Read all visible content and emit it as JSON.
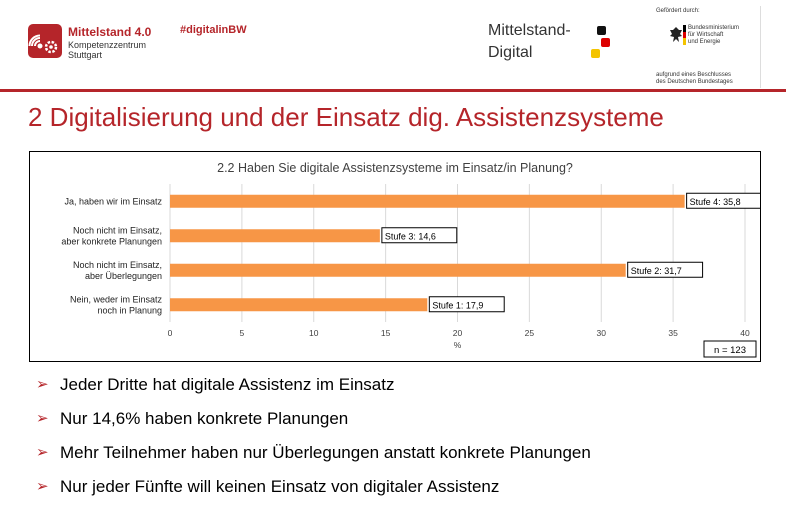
{
  "header": {
    "brand_name": "Mittelstand 4.0",
    "brand_sub1": "Kompetenzzentrum",
    "brand_sub2": "Stuttgart",
    "hashtag": "#digitalinBW",
    "md_line1": "Mittelstand-",
    "md_line2": "Digital",
    "gefoerdert": "Gefördert durch:",
    "ministry_l1": "Bundesministerium",
    "ministry_l2": "für Wirtschaft",
    "ministry_l3": "und Energie",
    "beschluss_l1": "aufgrund eines Beschlusses",
    "beschluss_l2": "des Deutschen Bundestages"
  },
  "slide_title": "2 Digitalisierung und der Einsatz dig. Assistenzsysteme",
  "chart_data": {
    "type": "bar",
    "orientation": "horizontal",
    "title": "2.2 Haben Sie digitale Assistenzsysteme im Einsatz/in Planung?",
    "xlabel": "%",
    "ylabel": "",
    "xlim": [
      0,
      40
    ],
    "xticks": [
      0,
      5,
      10,
      15,
      20,
      25,
      30,
      35,
      40
    ],
    "grid": true,
    "bar_color": "#f79646",
    "categories": [
      [
        "Ja, haben wir im Einsatz"
      ],
      [
        "Noch nicht im Einsatz,",
        "aber konkrete Planungen"
      ],
      [
        "Noch nicht im Einsatz,",
        "aber Überlegungen"
      ],
      [
        "Nein, weder im Einsatz",
        "noch in Planung"
      ]
    ],
    "values": [
      35.8,
      14.6,
      31.7,
      17.9
    ],
    "data_labels": [
      "Stufe 4: 35,8",
      "Stufe 3: 14,6",
      "Stufe 2: 31,7",
      "Stufe 1: 17,9"
    ],
    "note": "n = 123"
  },
  "bullets": [
    "Jeder Dritte hat digitale Assistenz im Einsatz",
    "Nur 14,6% haben konkrete Planungen",
    "Mehr Teilnehmer haben nur Überlegungen anstatt konkrete Planungen",
    "Nur jeder Fünfte will keinen Einsatz von digitaler Assistenz"
  ],
  "colors": {
    "accent": "#b5252a",
    "bar": "#f79646",
    "grid": "#d9d9d9"
  }
}
